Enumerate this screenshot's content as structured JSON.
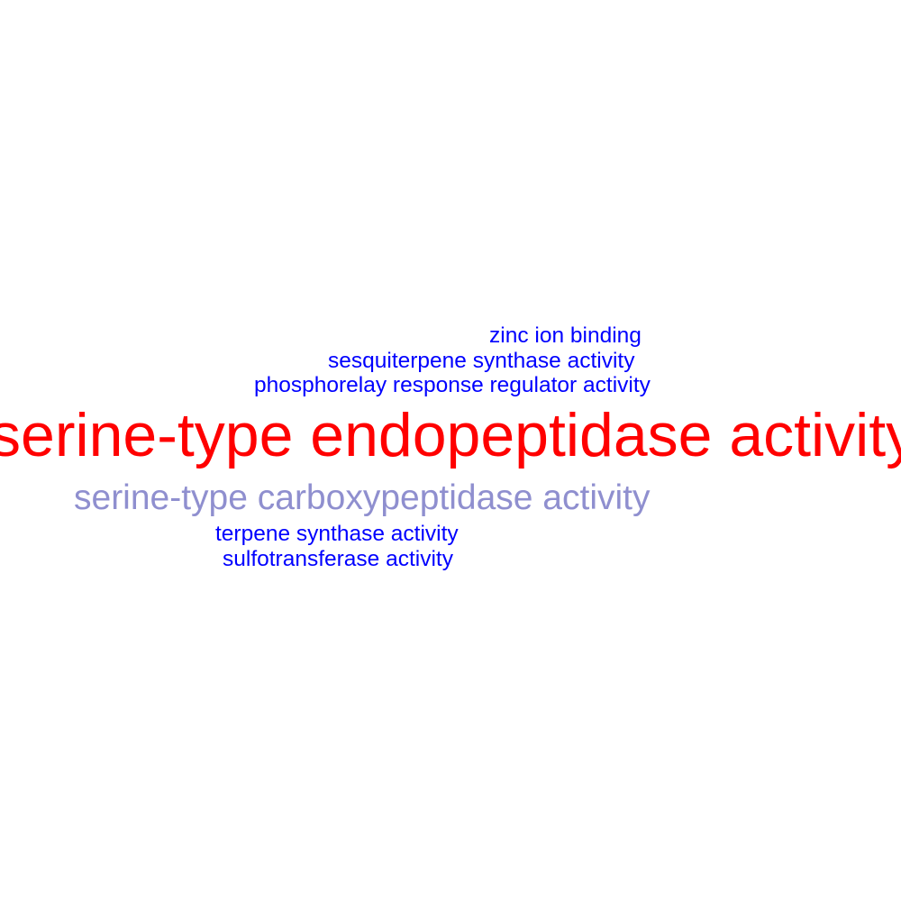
{
  "words": [
    {
      "text": "zinc ion binding",
      "color": "#0000ff"
    },
    {
      "text": "sesquiterpene synthase activity",
      "color": "#0000ff"
    },
    {
      "text": "phosphorelay response regulator activity",
      "color": "#0000ff"
    },
    {
      "text": "serine-type endopeptidase activity",
      "color": "#ff0000"
    },
    {
      "text": "serine-type carboxypeptidase activity",
      "color": "#8f8fcf"
    },
    {
      "text": "terpene synthase activity",
      "color": "#0000ff"
    },
    {
      "text": "sulfotransferase activity",
      "color": "#0000ff"
    }
  ]
}
